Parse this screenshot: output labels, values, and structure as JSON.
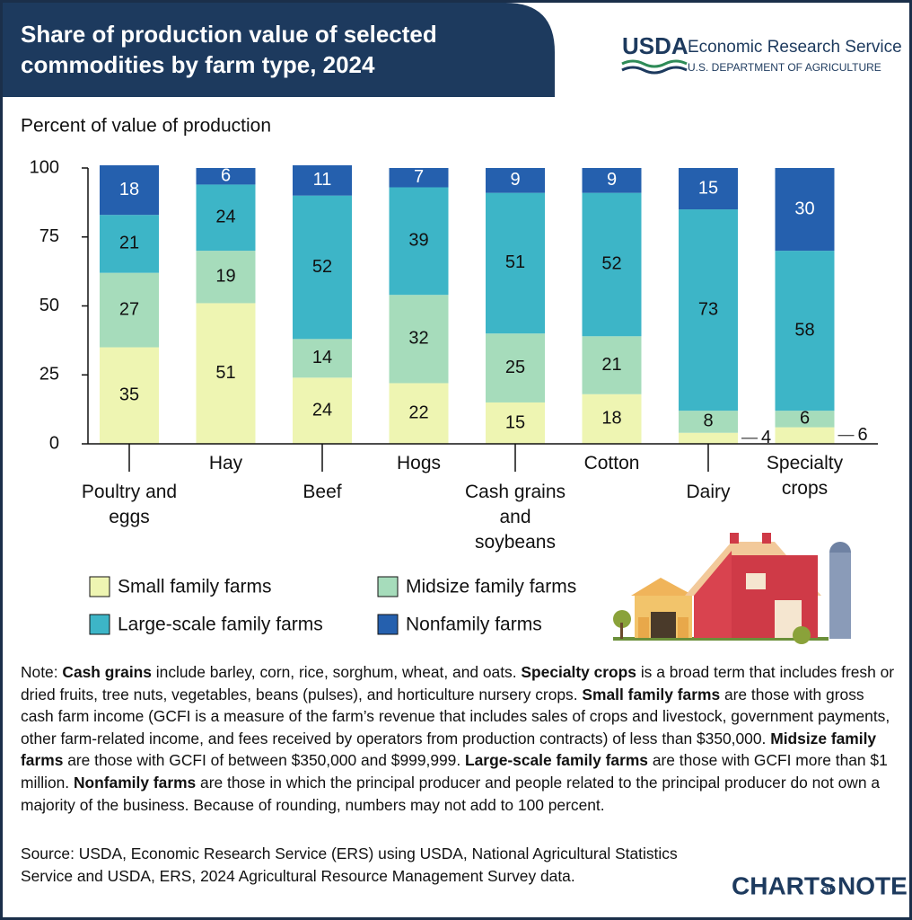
{
  "header": {
    "title": "Share of production value of selected commodities by farm type, 2024",
    "logo": "USDA",
    "agency": "Economic Research Service",
    "department": "U.S. DEPARTMENT OF AGRICULTURE"
  },
  "chart_data": {
    "type": "stacked_bar",
    "y_label": "Percent of value of production",
    "categories": [
      "Poultry and eggs",
      "Hay",
      "Beef",
      "Hogs",
      "Cash grains and soybeans",
      "Cotton",
      "Dairy",
      "Specialty crops"
    ],
    "series": [
      {
        "name": "Small family farms",
        "color": "#eef5b2",
        "values": [
          35,
          51,
          24,
          22,
          15,
          18,
          4,
          6
        ]
      },
      {
        "name": "Midsize family farms",
        "color": "#a6dcbb",
        "values": [
          27,
          19,
          14,
          32,
          25,
          21,
          8,
          6
        ]
      },
      {
        "name": "Large-scale family farms",
        "color": "#3db5c7",
        "values": [
          21,
          24,
          52,
          39,
          51,
          52,
          73,
          58
        ]
      },
      {
        "name": "Nonfamily farms",
        "color": "#2560ae",
        "values": [
          18,
          6,
          11,
          7,
          9,
          9,
          15,
          30
        ]
      }
    ],
    "ylim": [
      0,
      100
    ],
    "yticks": [
      0,
      25,
      50,
      75,
      100
    ],
    "grid": false
  },
  "note": [
    {
      "text": "Note: ",
      "bold": false
    },
    {
      "text": "Cash grains",
      "bold": true
    },
    {
      "text": " include barley, corn, rice, sorghum, wheat, and oats. ",
      "bold": false
    },
    {
      "text": "Specialty crops",
      "bold": true
    },
    {
      "text": " is a broad term that includes fresh or dried fruits, tree nuts, vegetables, beans (pulses), and horticulture nursery crops. ",
      "bold": false
    },
    {
      "text": "Small family farms",
      "bold": true
    },
    {
      "text": " are those with gross cash farm income (GCFI is a measure of the farm’s revenue that includes sales of crops and livestock, government payments, other farm-related income, and fees received by operators from production contracts) of less than $350,000. ",
      "bold": false
    },
    {
      "text": "Midsize family farms",
      "bold": true
    },
    {
      "text": " are those with GCFI of between $350,000 and $999,999. ",
      "bold": false
    },
    {
      "text": "Large-scale family farms",
      "bold": true
    },
    {
      "text": " are those with GCFI more than $1 million. ",
      "bold": false
    },
    {
      "text": "Nonfamily farms",
      "bold": true
    },
    {
      "text": " are those in which the principal producer and people related to the principal producer do not own a majority of the business. Because of rounding, numbers may not add to 100 percent.",
      "bold": false
    }
  ],
  "source": "Source: USDA, Economic Research Service (ERS) using USDA, National Agricultural Statistics Service and USDA, ERS, 2024 Agricultural Resource Management Survey data.",
  "brand": {
    "charts": "CHARTS",
    "of": "of",
    "note": "NOTE"
  }
}
